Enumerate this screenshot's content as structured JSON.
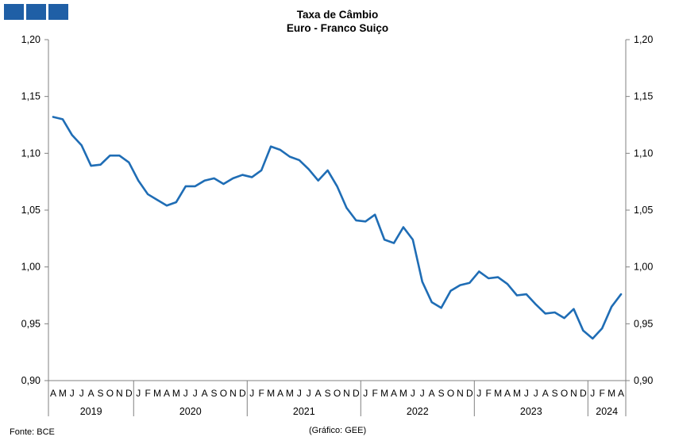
{
  "header": {
    "title_line1": "Taxa de Câmbio",
    "title_line2": "Euro - Franco Suiço",
    "logo_color": "#1f5fa6"
  },
  "footer": {
    "source": "Fonte: BCE",
    "credit": "(Gráfico: GEE)"
  },
  "chart_data": {
    "type": "line",
    "title": "Taxa de Câmbio Euro - Franco Suiço",
    "xlabel": "",
    "ylabel": "",
    "ylim": [
      0.9,
      1.2
    ],
    "yticks": [
      "0,90",
      "0,95",
      "1,00",
      "1,05",
      "1,10",
      "1,15",
      "1,20"
    ],
    "secondary_y_axis": true,
    "grid": false,
    "line_color": "#1f6db5",
    "x": [
      "A",
      "M",
      "J",
      "J",
      "A",
      "S",
      "O",
      "N",
      "D",
      "J",
      "F",
      "M",
      "A",
      "M",
      "J",
      "J",
      "A",
      "S",
      "O",
      "N",
      "D",
      "J",
      "F",
      "M",
      "A",
      "M",
      "J",
      "J",
      "A",
      "S",
      "O",
      "N",
      "D",
      "J",
      "F",
      "M",
      "A",
      "M",
      "J",
      "J",
      "A",
      "S",
      "O",
      "N",
      "D",
      "J",
      "F",
      "M",
      "A",
      "M",
      "J",
      "J",
      "A",
      "S",
      "O",
      "N",
      "D",
      "J",
      "F",
      "M",
      "A"
    ],
    "years": [
      {
        "label": "2019",
        "months": 9
      },
      {
        "label": "2020",
        "months": 12
      },
      {
        "label": "2021",
        "months": 12
      },
      {
        "label": "2022",
        "months": 12
      },
      {
        "label": "2023",
        "months": 12
      },
      {
        "label": "2024",
        "months": 4
      }
    ],
    "series": [
      {
        "values": [
          1.132,
          1.13,
          1.116,
          1.107,
          1.089,
          1.09,
          1.098,
          1.098,
          1.092,
          1.076,
          1.064,
          1.059,
          1.054,
          1.057,
          1.071,
          1.071,
          1.076,
          1.078,
          1.073,
          1.078,
          1.081,
          1.079,
          1.085,
          1.106,
          1.103,
          1.097,
          1.094,
          1.086,
          1.076,
          1.085,
          1.071,
          1.052,
          1.041,
          1.04,
          1.046,
          1.024,
          1.021,
          1.035,
          1.024,
          0.987,
          0.969,
          0.964,
          0.979,
          0.984,
          0.986,
          0.996,
          0.99,
          0.991,
          0.985,
          0.975,
          0.976,
          0.967,
          0.959,
          0.96,
          0.955,
          0.963,
          0.944,
          0.937,
          0.946,
          0.965,
          0.976
        ]
      }
    ]
  }
}
